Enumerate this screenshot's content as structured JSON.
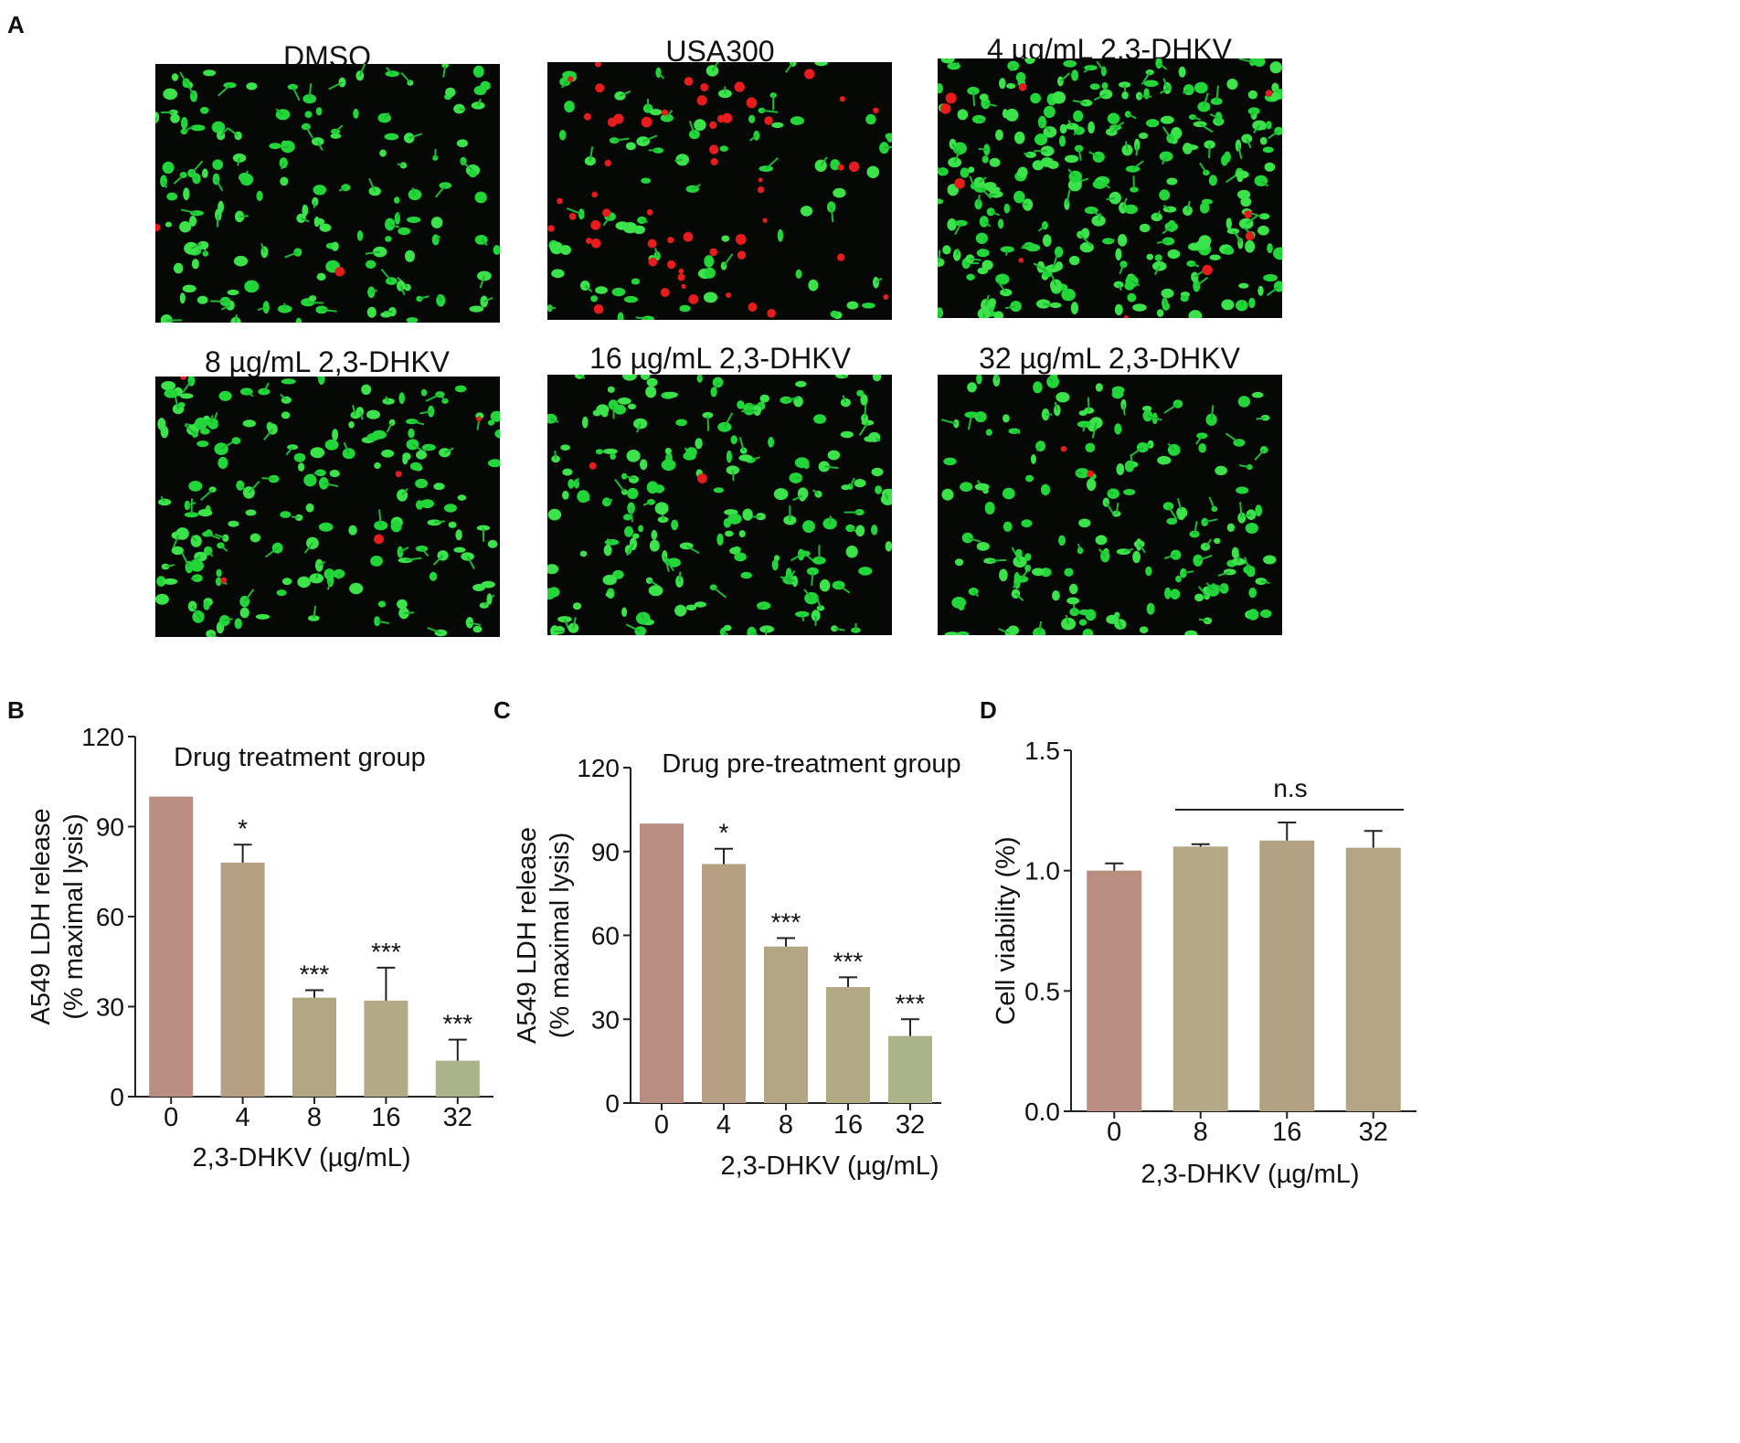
{
  "panel_a": {
    "letter": "A",
    "images": [
      {
        "label": "DMSO",
        "green_density": 0.55,
        "red_density": 0.01
      },
      {
        "label": "USA300",
        "green_density": 0.3,
        "red_density": 0.35
      },
      {
        "label": "4 µg/mL 2,3-DHKV",
        "green_density": 1.0,
        "red_density": 0.06
      },
      {
        "label": "8 µg/mL 2,3-DHKV",
        "green_density": 0.65,
        "red_density": 0.03
      },
      {
        "label": "16 µg/mL 2,3-DHKV",
        "green_density": 0.7,
        "red_density": 0.01
      },
      {
        "label": "32 µg/mL 2,3-DHKV",
        "green_density": 0.6,
        "red_density": 0.01
      }
    ]
  },
  "chart_data": [
    {
      "panel": "B",
      "type": "bar",
      "title": "Drug treatment group",
      "xlabel": "2,3-DHKV (µg/mL)",
      "ylabel_lines": [
        "A549 LDH release",
        "(% maximal lysis)"
      ],
      "categories": [
        "0",
        "4",
        "8",
        "16",
        "32"
      ],
      "values": [
        100,
        78,
        33,
        32,
        12
      ],
      "errors": [
        0,
        6,
        2.5,
        11,
        7
      ],
      "significance": [
        "",
        "*",
        "***",
        "***",
        "***"
      ],
      "ylim": [
        0,
        120
      ],
      "yticks": [
        "0",
        "30",
        "60",
        "90",
        "120"
      ],
      "colors": [
        "#b98d80",
        "#b5a083",
        "#b2a583",
        "#b2aa85",
        "#a9b488"
      ]
    },
    {
      "panel": "C",
      "type": "bar",
      "title": "Drug pre-treatment group",
      "xlabel": "2,3-DHKV (µg/mL)",
      "ylabel_lines": [
        "A549 LDH release",
        "(% maximal lysis)"
      ],
      "categories": [
        "0",
        "4",
        "8",
        "16",
        "32"
      ],
      "values": [
        100,
        85.5,
        56,
        41.5,
        24
      ],
      "errors": [
        0,
        5.5,
        3,
        3.5,
        6
      ],
      "significance": [
        "",
        "*",
        "***",
        "***",
        "***"
      ],
      "ylim": [
        0,
        120
      ],
      "yticks": [
        "0",
        "30",
        "60",
        "90",
        "120"
      ],
      "colors": [
        "#b98d80",
        "#b5a083",
        "#b2a583",
        "#b2aa85",
        "#a9b488"
      ]
    },
    {
      "panel": "D",
      "type": "bar",
      "title": "",
      "xlabel": "2,3-DHKV (µg/mL)",
      "ylabel_lines": [
        "Cell viability (%)"
      ],
      "categories": [
        "0",
        "8",
        "16",
        "32"
      ],
      "values": [
        1.0,
        1.1,
        1.125,
        1.095
      ],
      "errors": [
        0.03,
        0.01,
        0.075,
        0.07
      ],
      "significance": [
        "",
        "",
        "",
        ""
      ],
      "bracket_label": "n.s",
      "ylim": [
        0,
        1.5
      ],
      "yticks": [
        "0.0",
        "0.5",
        "1.0",
        "1.5"
      ],
      "colors": [
        "#b98d80",
        "#b5a887",
        "#b2a283",
        "#b3a483"
      ]
    }
  ]
}
